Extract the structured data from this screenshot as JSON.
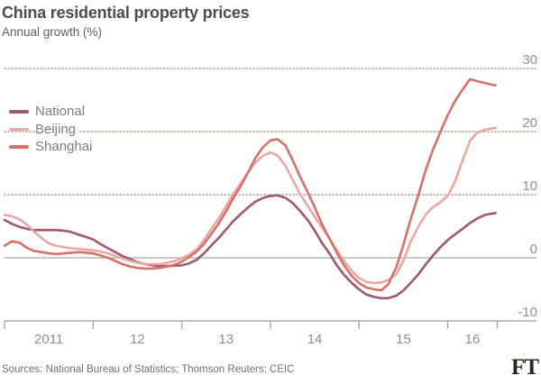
{
  "header": {
    "title": "China residential property prices",
    "subtitle": "Annual growth (%)"
  },
  "legend": {
    "position": "top-left-inside-plot",
    "items": [
      {
        "label": "National",
        "color": "#9e5a6e"
      },
      {
        "label": "Beijing",
        "color": "#eba7a2"
      },
      {
        "label": "Shanghai",
        "color": "#d8706a"
      }
    ]
  },
  "colors": {
    "background": "#ffffff",
    "grid_dotted": "#9d968c",
    "zero_line": "#b7bcb1",
    "axis_line": "#aaa89f",
    "axis_text": "#8f8f8f",
    "title_text": "#4d4d4d",
    "subtitle_text": "#5f5f5f",
    "source_text": "#73716d",
    "logo_text": "#2b2520"
  },
  "chart_data": {
    "type": "line",
    "title": "China residential property prices",
    "subtitle": "Annual growth (%)",
    "xlabel": "",
    "ylabel": "Annual growth (%)",
    "ylim": [
      -10,
      30
    ],
    "y_ticks": [
      30,
      20,
      10,
      0,
      -10
    ],
    "y_gridline_style": {
      "positive": "dotted",
      "zero": "solid",
      "bottom": "solid-axis"
    },
    "x_range": [
      2011,
      2016.56
    ],
    "x_tick_years": [
      2011,
      2012,
      2013,
      2014,
      2015,
      2016
    ],
    "x_tick_labels": [
      "2011",
      "12",
      "13",
      "14",
      "15",
      "16"
    ],
    "x_end": 2016.56,
    "grid": "horizontal only",
    "legend_position": "top-left inside",
    "series": [
      {
        "name": "National",
        "color": "#9e5a6e",
        "points": [
          [
            2011.0,
            6.0
          ],
          [
            2011.08,
            5.4
          ],
          [
            2011.17,
            4.9
          ],
          [
            2011.25,
            4.6
          ],
          [
            2011.33,
            4.4
          ],
          [
            2011.42,
            4.4
          ],
          [
            2011.5,
            4.4
          ],
          [
            2011.58,
            4.4
          ],
          [
            2011.67,
            4.3
          ],
          [
            2011.75,
            4.1
          ],
          [
            2011.83,
            3.7
          ],
          [
            2011.92,
            3.3
          ],
          [
            2012.0,
            2.9
          ],
          [
            2012.08,
            2.2
          ],
          [
            2012.17,
            1.5
          ],
          [
            2012.25,
            0.9
          ],
          [
            2012.33,
            0.3
          ],
          [
            2012.42,
            -0.2
          ],
          [
            2012.5,
            -0.7
          ],
          [
            2012.58,
            -1.0
          ],
          [
            2012.67,
            -1.2
          ],
          [
            2012.75,
            -1.3
          ],
          [
            2012.83,
            -1.3
          ],
          [
            2012.92,
            -1.25
          ],
          [
            2013.0,
            -1.2
          ],
          [
            2013.08,
            -0.9
          ],
          [
            2013.17,
            -0.3
          ],
          [
            2013.25,
            0.7
          ],
          [
            2013.33,
            1.9
          ],
          [
            2013.42,
            3.2
          ],
          [
            2013.5,
            4.5
          ],
          [
            2013.58,
            5.8
          ],
          [
            2013.67,
            7.0
          ],
          [
            2013.75,
            8.0
          ],
          [
            2013.83,
            8.9
          ],
          [
            2013.92,
            9.5
          ],
          [
            2014.0,
            9.8
          ],
          [
            2014.08,
            9.9
          ],
          [
            2014.17,
            9.5
          ],
          [
            2014.25,
            8.7
          ],
          [
            2014.33,
            7.5
          ],
          [
            2014.42,
            6.0
          ],
          [
            2014.5,
            4.3
          ],
          [
            2014.58,
            2.4
          ],
          [
            2014.67,
            0.6
          ],
          [
            2014.75,
            -1.2
          ],
          [
            2014.83,
            -2.7
          ],
          [
            2014.92,
            -4.0
          ],
          [
            2015.0,
            -5.0
          ],
          [
            2015.08,
            -5.8
          ],
          [
            2015.17,
            -6.2
          ],
          [
            2015.25,
            -6.4
          ],
          [
            2015.33,
            -6.4
          ],
          [
            2015.42,
            -6.0
          ],
          [
            2015.5,
            -5.2
          ],
          [
            2015.58,
            -4.0
          ],
          [
            2015.67,
            -2.6
          ],
          [
            2015.75,
            -1.1
          ],
          [
            2015.83,
            0.3
          ],
          [
            2015.92,
            1.7
          ],
          [
            2016.0,
            2.8
          ],
          [
            2016.08,
            3.7
          ],
          [
            2016.17,
            4.6
          ],
          [
            2016.25,
            5.5
          ],
          [
            2016.33,
            6.2
          ],
          [
            2016.42,
            6.8
          ],
          [
            2016.54,
            7.1
          ]
        ]
      },
      {
        "name": "Beijing",
        "color": "#eba7a2",
        "points": [
          [
            2011.0,
            6.8
          ],
          [
            2011.08,
            6.6
          ],
          [
            2011.17,
            6.1
          ],
          [
            2011.25,
            5.3
          ],
          [
            2011.33,
            4.2
          ],
          [
            2011.42,
            3.1
          ],
          [
            2011.5,
            2.3
          ],
          [
            2011.58,
            1.9
          ],
          [
            2011.67,
            1.7
          ],
          [
            2011.75,
            1.5
          ],
          [
            2011.83,
            1.4
          ],
          [
            2011.92,
            1.3
          ],
          [
            2012.0,
            1.2
          ],
          [
            2012.08,
            1.0
          ],
          [
            2012.17,
            0.7
          ],
          [
            2012.25,
            0.3
          ],
          [
            2012.33,
            -0.1
          ],
          [
            2012.42,
            -0.5
          ],
          [
            2012.5,
            -0.8
          ],
          [
            2012.58,
            -1.0
          ],
          [
            2012.67,
            -1.0
          ],
          [
            2012.75,
            -1.0
          ],
          [
            2012.83,
            -0.8
          ],
          [
            2012.92,
            -0.5
          ],
          [
            2013.0,
            -0.1
          ],
          [
            2013.08,
            0.5
          ],
          [
            2013.17,
            1.4
          ],
          [
            2013.25,
            2.8
          ],
          [
            2013.33,
            4.5
          ],
          [
            2013.42,
            6.3
          ],
          [
            2013.5,
            8.2
          ],
          [
            2013.58,
            10.1
          ],
          [
            2013.67,
            11.9
          ],
          [
            2013.75,
            13.6
          ],
          [
            2013.83,
            15.1
          ],
          [
            2013.92,
            16.2
          ],
          [
            2014.0,
            16.7
          ],
          [
            2014.08,
            16.2
          ],
          [
            2014.17,
            14.6
          ],
          [
            2014.25,
            12.4
          ],
          [
            2014.33,
            10.2
          ],
          [
            2014.42,
            8.2
          ],
          [
            2014.5,
            6.5
          ],
          [
            2014.58,
            4.8
          ],
          [
            2014.67,
            3.0
          ],
          [
            2014.75,
            1.2
          ],
          [
            2014.83,
            -0.5
          ],
          [
            2014.92,
            -2.1
          ],
          [
            2015.0,
            -3.2
          ],
          [
            2015.08,
            -3.8
          ],
          [
            2015.17,
            -4.0
          ],
          [
            2015.25,
            -3.9
          ],
          [
            2015.33,
            -3.5
          ],
          [
            2015.42,
            -2.6
          ],
          [
            2015.5,
            -0.5
          ],
          [
            2015.58,
            2.5
          ],
          [
            2015.67,
            5.0
          ],
          [
            2015.75,
            6.8
          ],
          [
            2015.83,
            8.0
          ],
          [
            2015.92,
            8.8
          ],
          [
            2016.0,
            9.8
          ],
          [
            2016.08,
            12.0
          ],
          [
            2016.17,
            15.5
          ],
          [
            2016.25,
            18.5
          ],
          [
            2016.33,
            19.8
          ],
          [
            2016.42,
            20.3
          ],
          [
            2016.54,
            20.6
          ]
        ]
      },
      {
        "name": "Shanghai",
        "color": "#d8706a",
        "points": [
          [
            2011.0,
            1.9
          ],
          [
            2011.08,
            2.6
          ],
          [
            2011.17,
            2.4
          ],
          [
            2011.25,
            1.6
          ],
          [
            2011.33,
            1.1
          ],
          [
            2011.42,
            0.9
          ],
          [
            2011.5,
            0.7
          ],
          [
            2011.58,
            0.6
          ],
          [
            2011.67,
            0.7
          ],
          [
            2011.75,
            0.8
          ],
          [
            2011.83,
            0.9
          ],
          [
            2011.92,
            0.8
          ],
          [
            2012.0,
            0.7
          ],
          [
            2012.08,
            0.4
          ],
          [
            2012.17,
            0.0
          ],
          [
            2012.25,
            -0.5
          ],
          [
            2012.33,
            -1.0
          ],
          [
            2012.42,
            -1.4
          ],
          [
            2012.5,
            -1.6
          ],
          [
            2012.58,
            -1.7
          ],
          [
            2012.67,
            -1.7
          ],
          [
            2012.75,
            -1.6
          ],
          [
            2012.83,
            -1.4
          ],
          [
            2012.92,
            -1.1
          ],
          [
            2013.0,
            -0.6
          ],
          [
            2013.08,
            0.1
          ],
          [
            2013.17,
            1.0
          ],
          [
            2013.25,
            2.2
          ],
          [
            2013.33,
            3.7
          ],
          [
            2013.42,
            5.5
          ],
          [
            2013.5,
            7.4
          ],
          [
            2013.58,
            9.4
          ],
          [
            2013.67,
            11.5
          ],
          [
            2013.75,
            13.6
          ],
          [
            2013.83,
            15.8
          ],
          [
            2013.92,
            17.6
          ],
          [
            2014.0,
            18.6
          ],
          [
            2014.08,
            18.8
          ],
          [
            2014.17,
            17.8
          ],
          [
            2014.25,
            15.5
          ],
          [
            2014.33,
            13.0
          ],
          [
            2014.42,
            10.4
          ],
          [
            2014.5,
            8.0
          ],
          [
            2014.58,
            5.4
          ],
          [
            2014.67,
            2.9
          ],
          [
            2014.75,
            0.8
          ],
          [
            2014.83,
            -1.2
          ],
          [
            2014.92,
            -2.9
          ],
          [
            2015.0,
            -4.0
          ],
          [
            2015.08,
            -4.7
          ],
          [
            2015.17,
            -5.0
          ],
          [
            2015.25,
            -5.15
          ],
          [
            2015.33,
            -4.2
          ],
          [
            2015.42,
            -1.5
          ],
          [
            2015.5,
            2.0
          ],
          [
            2015.58,
            6.0
          ],
          [
            2015.67,
            10.0
          ],
          [
            2015.75,
            13.8
          ],
          [
            2015.83,
            17.0
          ],
          [
            2015.92,
            20.0
          ],
          [
            2016.0,
            22.6
          ],
          [
            2016.08,
            24.8
          ],
          [
            2016.17,
            26.7
          ],
          [
            2016.25,
            28.3
          ],
          [
            2016.33,
            28.0
          ],
          [
            2016.42,
            27.7
          ],
          [
            2016.54,
            27.3
          ]
        ]
      }
    ]
  },
  "footer": {
    "sources": "Sources: National Bureau of Statistics; Thomson Reuters; CEIC",
    "logo": "FT"
  }
}
